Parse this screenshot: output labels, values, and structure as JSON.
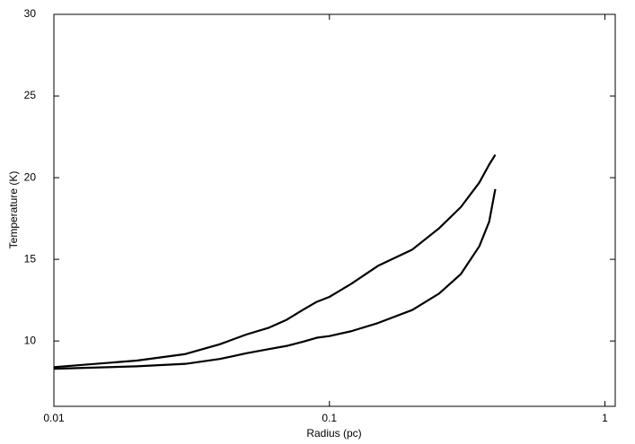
{
  "chart_data": {
    "type": "line",
    "x_label": "Radius (pc)",
    "y_label": "Temperature (K)",
    "x": [
      0.01,
      0.02,
      0.03,
      0.04,
      0.05,
      0.06,
      0.07,
      0.08,
      0.09,
      0.1,
      0.12,
      0.15,
      0.2,
      0.25,
      0.3,
      0.35,
      0.38,
      0.4
    ],
    "series": [
      {
        "color": "#000000",
        "values": [
          8.4,
          8.8,
          9.2,
          9.8,
          10.4,
          10.8,
          11.3,
          11.9,
          12.4,
          12.7,
          13.5,
          14.6,
          15.6,
          16.9,
          18.2,
          19.7,
          20.8,
          21.4
        ]
      },
      {
        "color": "#000000",
        "values": [
          8.3,
          8.45,
          8.6,
          8.9,
          9.25,
          9.5,
          9.7,
          9.95,
          10.2,
          10.3,
          10.6,
          11.1,
          11.9,
          12.9,
          14.1,
          15.8,
          17.3,
          19.3
        ]
      }
    ],
    "xscale": "log",
    "xlim": [
      0.01,
      1.09
    ],
    "xticks": [
      0.01,
      0.1,
      1
    ],
    "ylim": [
      6,
      30
    ],
    "yticks": [
      10,
      15,
      20,
      25,
      30
    ]
  }
}
